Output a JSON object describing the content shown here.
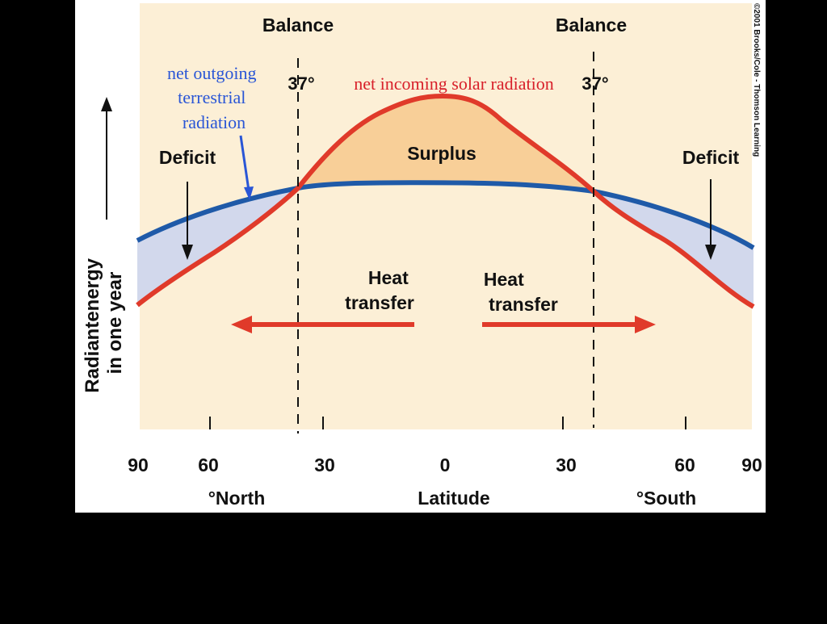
{
  "labels": {
    "balance_left": "Balance",
    "balance_right": "Balance",
    "angle_left": "37°",
    "angle_right": "37°",
    "net_outgoing": [
      "net outgoing",
      "terrestrial",
      "radiation"
    ],
    "net_incoming": "net incoming solar radiation",
    "surplus": "Surplus",
    "deficit_left": "Deficit",
    "deficit_right": "Deficit",
    "heat_transfer_left": [
      "Heat",
      "transfer"
    ],
    "heat_transfer_right": [
      "Heat",
      "transfer"
    ],
    "y_axis": [
      "Radiantenergy",
      "in one year"
    ],
    "x_axis": "Latitude",
    "north": "°North",
    "south": "°South",
    "copyright": "©2001 Brooks/Cole - Thomson Learning"
  },
  "ticks": [
    "90",
    "60",
    "30",
    "0",
    "30",
    "60",
    "90"
  ],
  "colors": {
    "background": "#fcefd6",
    "solar_curve": "#e03a2a",
    "terrestrial_curve": "#1f5aa8",
    "surplus_fill": "#f8cf98",
    "deficit_fill": "#d2d8ec",
    "arrow": "#e03a2a",
    "outgoing_label": "#2a56d6",
    "incoming_label": "#d8202a"
  }
}
